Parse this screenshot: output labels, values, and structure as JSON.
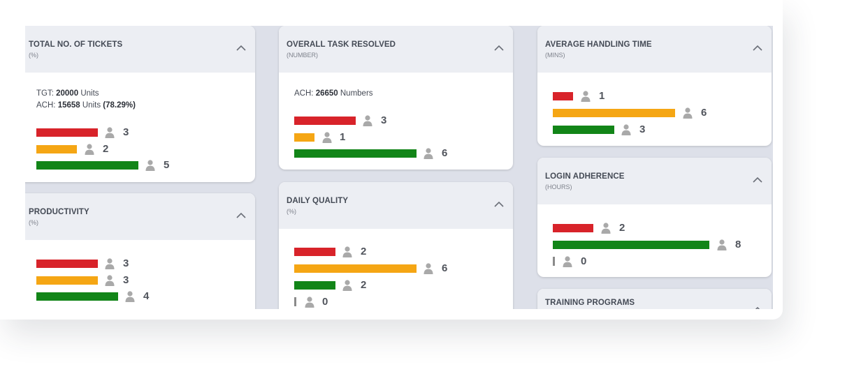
{
  "colors": {
    "background": "#dde0e9",
    "card": "#ffffff",
    "card_header": "#eceef3",
    "red": "#d8232a",
    "orange": "#f5a614",
    "green": "#128518",
    "icon": "#a9a9a9"
  },
  "cards": {
    "total_tickets": {
      "title": "TOTAL NO. OF TICKETS",
      "unit": "(%)",
      "tgt_label": "TGT:",
      "tgt_value": "20000",
      "tgt_unit": "Units",
      "ach_label": "ACH:",
      "ach_value": "15658",
      "ach_unit": "Units",
      "ach_pct": "(78.29%)",
      "counts": {
        "red": "3",
        "orange": "2",
        "green": "5"
      }
    },
    "productivity": {
      "title": "PRODUCTIVITY",
      "unit": "(%)",
      "counts": {
        "red": "3",
        "orange": "3",
        "green": "4"
      }
    },
    "overall_task": {
      "title": "OVERALL TASK RESOLVED",
      "unit": "(NUMBER)",
      "ach_label": "ACH:",
      "ach_value": "26650",
      "ach_unit": "Numbers",
      "counts": {
        "red": "3",
        "orange": "1",
        "green": "6"
      }
    },
    "daily_quality": {
      "title": "DAILY QUALITY",
      "unit": "(%)",
      "counts": {
        "red": "2",
        "orange": "6",
        "green": "2",
        "none": "0"
      }
    },
    "avg_handling": {
      "title": "AVERAGE HANDLING TIME",
      "unit": "(MINS)",
      "counts": {
        "red": "1",
        "orange": "6",
        "green": "3"
      }
    },
    "login_adherence": {
      "title": "LOGIN ADHERENCE",
      "unit": "(HOURS)",
      "counts": {
        "red": "2",
        "green": "8",
        "none": "0"
      }
    },
    "training": {
      "title": "TRAINING PROGRAMS"
    }
  },
  "icons": {
    "collapse": "chevron-up-icon",
    "agent": "person-icon"
  }
}
